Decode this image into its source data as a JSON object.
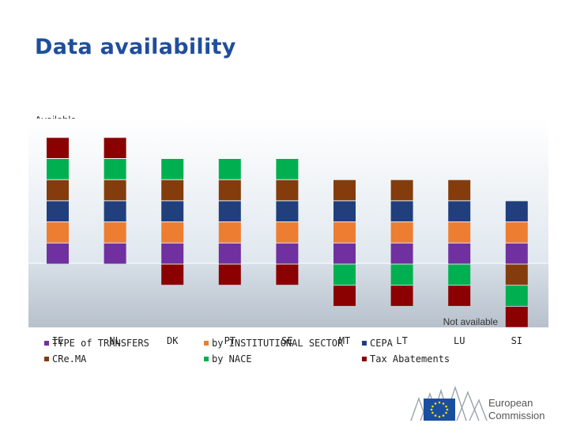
{
  "page": {
    "title": "Data availability"
  },
  "chart_data": {
    "type": "bar",
    "orientation": "vertical",
    "stacked": true,
    "baseline_label_top": "Available",
    "baseline_label_bottom": "Not available",
    "categories": [
      "IE",
      "NL",
      "DK",
      "PT",
      "SE",
      "MT",
      "LT",
      "LU",
      "SI"
    ],
    "series": [
      {
        "name": "TYPE of TRANSFERS",
        "color": "#7030a0",
        "values": [
          1,
          1,
          1,
          1,
          1,
          1,
          1,
          1,
          1
        ]
      },
      {
        "name": "by INSTITUTIONAL SECTOR",
        "color": "#ed7d31",
        "values": [
          1,
          1,
          1,
          1,
          1,
          1,
          1,
          1,
          1
        ]
      },
      {
        "name": "CEPA",
        "color": "#203f7c",
        "values": [
          1,
          1,
          1,
          1,
          1,
          1,
          1,
          1,
          1
        ]
      },
      {
        "name": "CRe.MA",
        "color": "#843c0c",
        "values": [
          1,
          1,
          1,
          1,
          1,
          1,
          1,
          1,
          -1
        ]
      },
      {
        "name": "by NACE",
        "color": "#00b050",
        "values": [
          1,
          1,
          1,
          1,
          1,
          -1,
          -1,
          -1,
          -1
        ]
      },
      {
        "name": "Tax Abatements",
        "color": "#8b0000",
        "values": [
          1,
          1,
          -1,
          -1,
          -1,
          -1,
          -1,
          -1,
          -1
        ]
      }
    ],
    "legend": {
      "position": "bottom"
    },
    "grid": false
  },
  "logo": {
    "line1": "European",
    "line2": "Commission"
  }
}
